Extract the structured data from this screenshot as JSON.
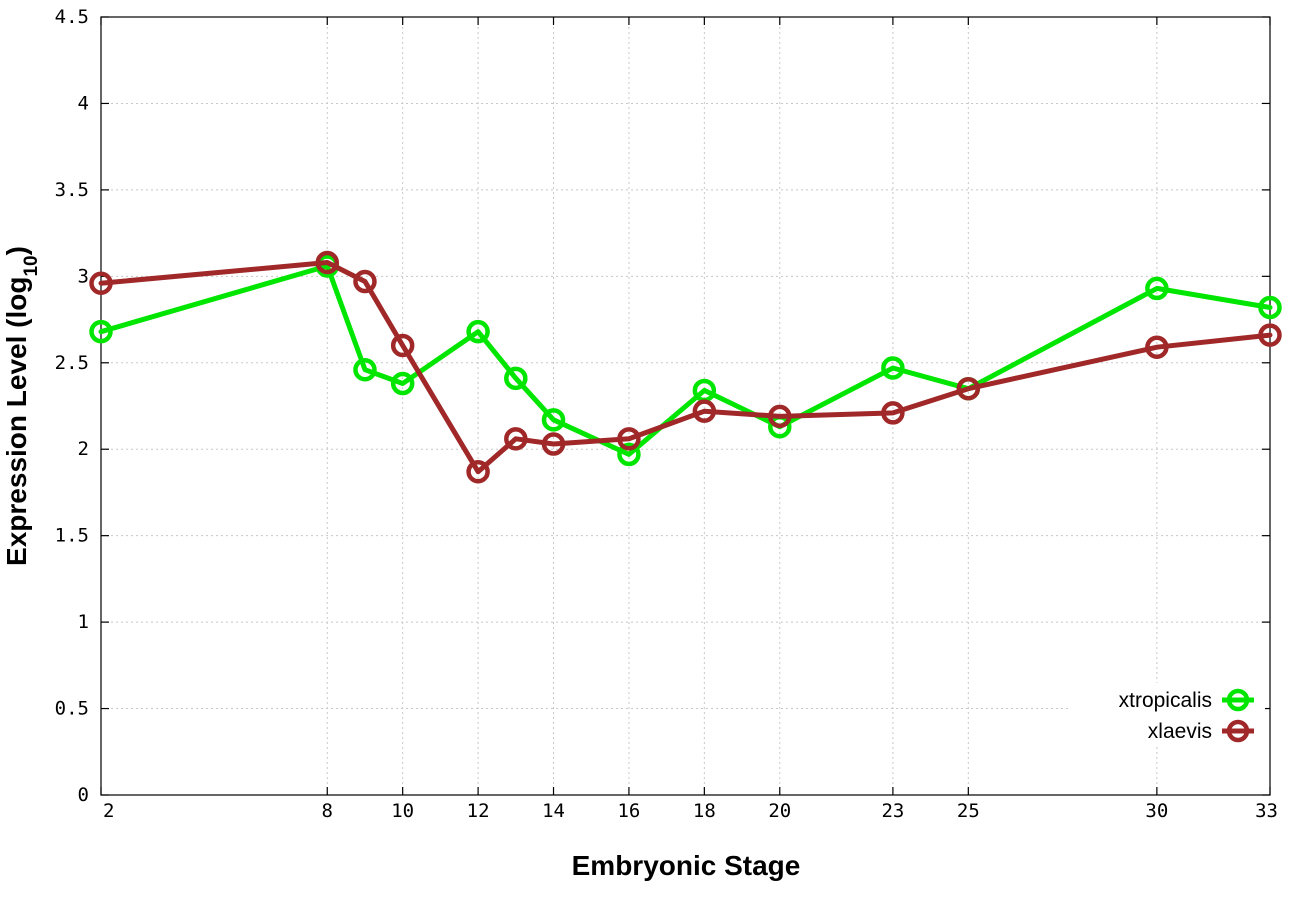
{
  "chart_data": {
    "type": "line",
    "xlabel": "Embryonic Stage",
    "ylabel_main": "Expression Level (log",
    "ylabel_sub": "10",
    "ylabel_close": ")",
    "x_ticks": [
      2,
      8,
      10,
      12,
      14,
      16,
      18,
      20,
      23,
      25,
      30,
      33
    ],
    "y_ticks": [
      0,
      0.5,
      1,
      1.5,
      2,
      2.5,
      3,
      3.5,
      4,
      4.5
    ],
    "y_tick_labels": [
      "0",
      "0.5",
      "1",
      "1.5",
      "2",
      "2.5",
      "3",
      "3.5",
      "4",
      "4.5"
    ],
    "xlim": [
      2,
      33
    ],
    "ylim": [
      0,
      4.5
    ],
    "grid": true,
    "legend_position": "bottom-right",
    "series": [
      {
        "name": "xtropicalis",
        "color": "#00e600",
        "x": [
          2,
          8,
          9,
          10,
          12,
          13,
          14,
          16,
          18,
          20,
          23,
          25,
          30,
          33
        ],
        "y": [
          2.68,
          3.06,
          2.46,
          2.38,
          2.68,
          2.41,
          2.17,
          1.97,
          2.34,
          2.13,
          2.47,
          2.35,
          2.93,
          2.82
        ]
      },
      {
        "name": "xlaevis",
        "color": "#a02828",
        "x": [
          2,
          8,
          9,
          10,
          12,
          13,
          14,
          16,
          18,
          20,
          23,
          25,
          30,
          33
        ],
        "y": [
          2.96,
          3.08,
          2.97,
          2.6,
          1.87,
          2.06,
          2.03,
          2.06,
          2.22,
          2.19,
          2.21,
          2.35,
          2.59,
          2.66
        ]
      }
    ]
  }
}
